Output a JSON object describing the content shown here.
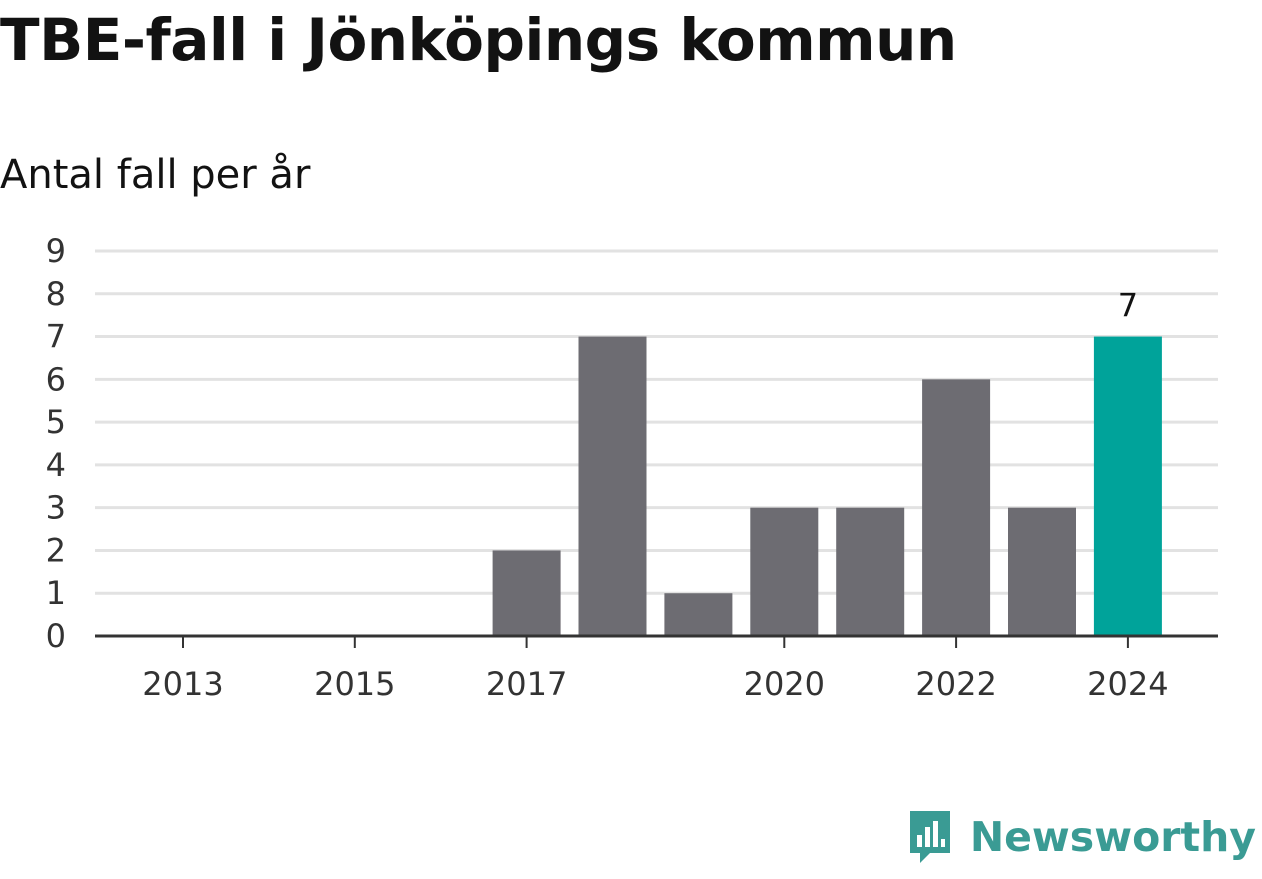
{
  "chart_data": {
    "type": "bar",
    "title": "TBE-fall i Jönköpings kommun",
    "subtitle": "Antal fall per år",
    "xlabel": "",
    "ylabel": "",
    "categories": [
      "2013",
      "2014",
      "2015",
      "2016",
      "2017",
      "2018",
      "2019",
      "2020",
      "2021",
      "2022",
      "2023",
      "2024"
    ],
    "values": [
      0,
      0,
      0,
      0,
      2,
      7,
      1,
      3,
      3,
      6,
      3,
      7
    ],
    "x_tick_labels": [
      "2013",
      "2015",
      "2017",
      "2020",
      "2022",
      "2024"
    ],
    "y_ticks": [
      0,
      1,
      2,
      3,
      4,
      5,
      6,
      7,
      8,
      9
    ],
    "ylim": [
      0,
      9
    ],
    "grid": true,
    "highlight": {
      "category": "2024",
      "label": "7"
    },
    "colors": {
      "bar": "#6d6c72",
      "highlight": "#00a39a",
      "grid": "#e2e2e2",
      "axis": "#333333"
    }
  },
  "brand": {
    "name": "Newsworthy",
    "icon": "newsworthy-logo-icon",
    "color": "#3a9b94"
  }
}
